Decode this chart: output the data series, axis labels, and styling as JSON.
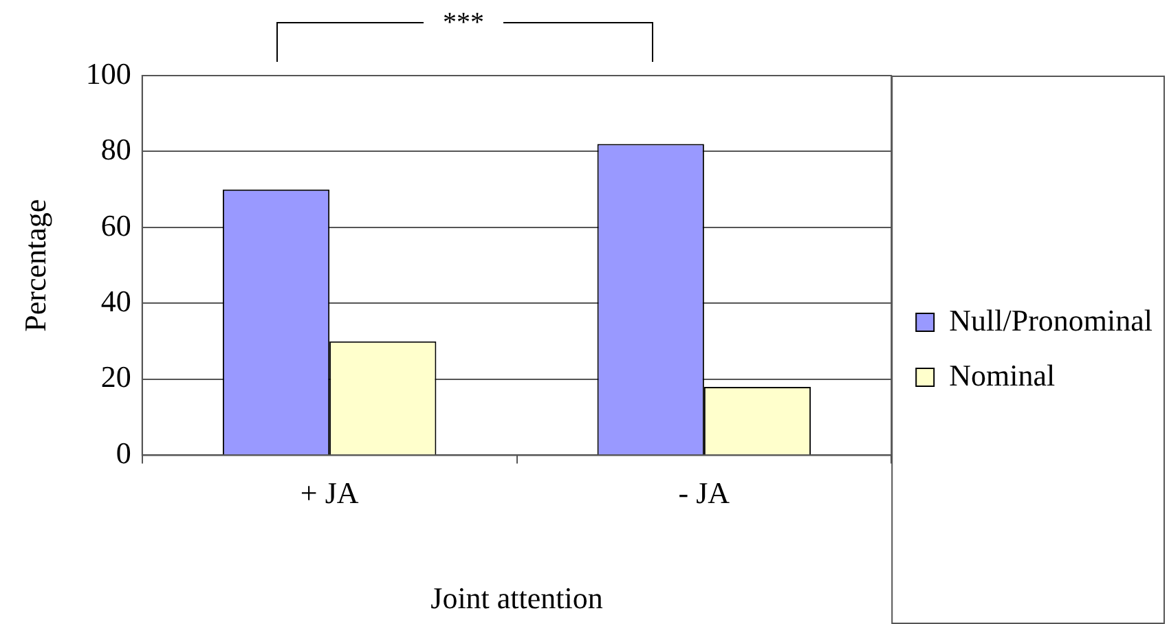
{
  "chart_data": {
    "type": "bar",
    "xlabel": "Joint attention",
    "ylabel": "Percentage",
    "categories": [
      "+ JA",
      "- JA"
    ],
    "series": [
      {
        "name": "Null/Pronominal",
        "color": "#9999ff",
        "values": [
          70,
          82
        ]
      },
      {
        "name": "Nominal",
        "color": "#ffffcc",
        "values": [
          30,
          18
        ]
      }
    ],
    "ylim": [
      0,
      100
    ],
    "yticks": [
      0,
      20,
      40,
      60,
      80,
      100
    ],
    "grid": "y",
    "legend": "right",
    "annotations": [
      "***"
    ]
  }
}
